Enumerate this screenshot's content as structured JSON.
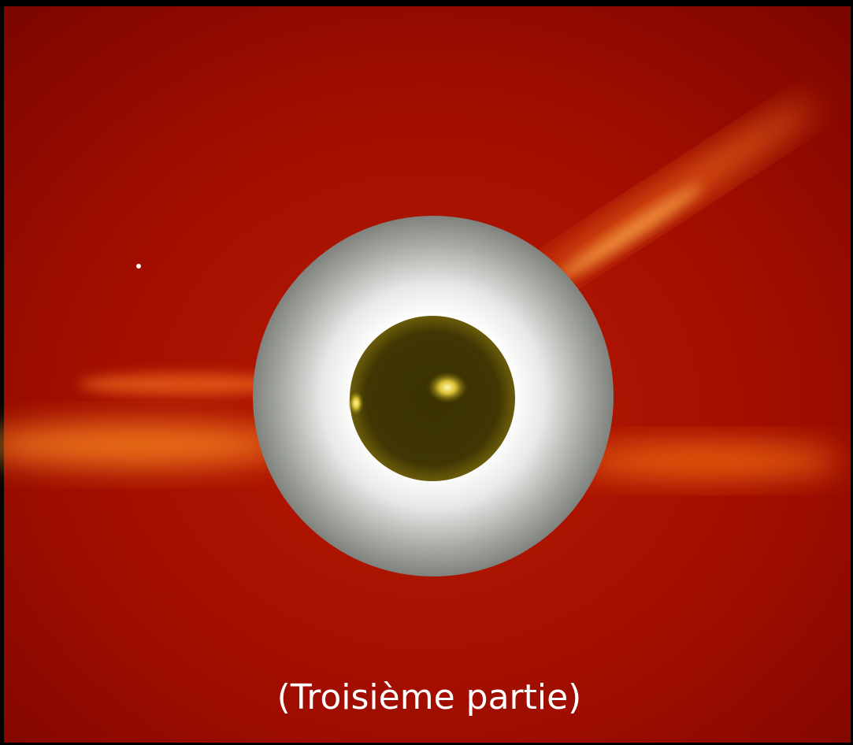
{
  "caption": "(Troisième partie)"
}
